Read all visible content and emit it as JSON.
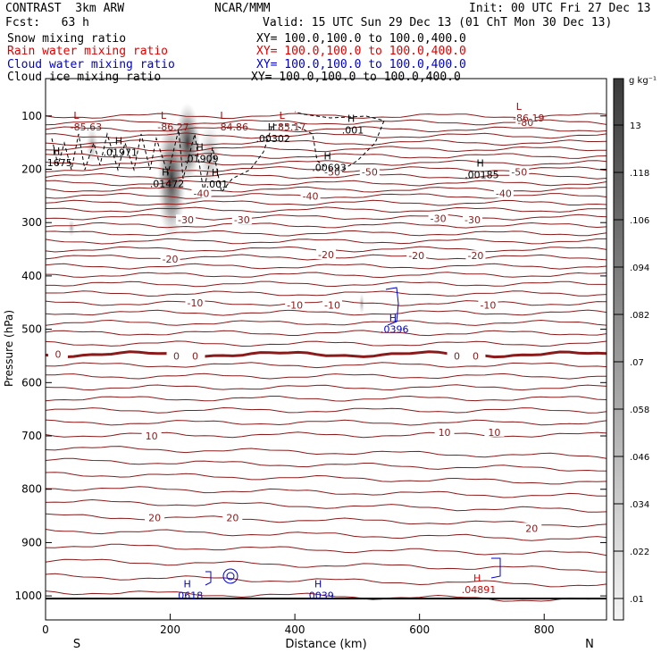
{
  "header": {
    "model": "CONTRAST  3km ARW",
    "org": "NCAR/MMM",
    "init": "Init: 00 UTC Fri 27 Dec 13",
    "fcst": "Fcst:   63 h",
    "valid": "Valid: 15 UTC Sun 29 Dec 13 (01 ChT Mon 30 Dec 13)",
    "fields": [
      {
        "name": "Snow mixing ratio",
        "xy": "XY= 100.0,100.0 to 100.0,400.0",
        "color": "#000000"
      },
      {
        "name": "Rain water mixing ratio",
        "xy": "XY= 100.0,100.0 to 100.0,400.0",
        "color": "#e00000"
      },
      {
        "name": "Cloud water mixing ratio",
        "xy": "XY= 100.0,100.0 to 100.0,400.0",
        "color": "#0000d0"
      },
      {
        "name": "Cloud ice mixing ratio",
        "xy": "XY= 100.0,100.0 to 100.0,400.0",
        "color": "#000000"
      }
    ]
  },
  "colorbar": {
    "unit": "g kg⁻¹",
    "ticks": [
      "13",
      ".118",
      ".106",
      ".094",
      ".082",
      ".07",
      ".058",
      ".046",
      ".034",
      ".022",
      ".01"
    ]
  },
  "chart_data": {
    "type": "cross-section",
    "xlabel": "Distance (km)",
    "ylabel": "Pressure (hPa)",
    "x_ticks": [
      0,
      200,
      400,
      600,
      800
    ],
    "xlim": [
      0,
      900
    ],
    "y_ticks": [
      100,
      200,
      300,
      400,
      500,
      600,
      700,
      800,
      900,
      1000
    ],
    "ylim": [
      30,
      1045
    ],
    "end_labels": {
      "left": "S",
      "right": "N"
    },
    "temperature_contours": [
      {
        "label": "-80",
        "x": 770,
        "p": 112
      },
      {
        "label": "-50",
        "x": 520,
        "p": 205
      },
      {
        "label": "-50",
        "x": 760,
        "p": 205
      },
      {
        "label": "-50",
        "x": 460,
        "p": 205
      },
      {
        "label": "-40",
        "x": 250,
        "p": 245
      },
      {
        "label": "-40",
        "x": 425,
        "p": 250
      },
      {
        "label": "-40",
        "x": 735,
        "p": 245
      },
      {
        "label": "-30",
        "x": 225,
        "p": 295
      },
      {
        "label": "-30",
        "x": 315,
        "p": 295
      },
      {
        "label": "-30",
        "x": 630,
        "p": 292
      },
      {
        "label": "-30",
        "x": 685,
        "p": 295
      },
      {
        "label": "-20",
        "x": 200,
        "p": 368
      },
      {
        "label": "-20",
        "x": 450,
        "p": 360
      },
      {
        "label": "-20",
        "x": 595,
        "p": 362
      },
      {
        "label": "-20",
        "x": 690,
        "p": 362
      },
      {
        "label": "-10",
        "x": 240,
        "p": 450
      },
      {
        "label": "-10",
        "x": 400,
        "p": 455
      },
      {
        "label": "-10",
        "x": 460,
        "p": 455
      },
      {
        "label": "-10",
        "x": 710,
        "p": 455
      },
      {
        "label": "0",
        "x": 20,
        "p": 547
      },
      {
        "label": "0",
        "x": 210,
        "p": 550
      },
      {
        "label": "0",
        "x": 240,
        "p": 550
      },
      {
        "label": "0",
        "x": 660,
        "p": 550
      },
      {
        "label": "0",
        "x": 690,
        "p": 550
      },
      {
        "label": "10",
        "x": 170,
        "p": 700
      },
      {
        "label": "10",
        "x": 640,
        "p": 693
      },
      {
        "label": "10",
        "x": 720,
        "p": 693
      },
      {
        "label": "20",
        "x": 175,
        "p": 853
      },
      {
        "label": "20",
        "x": 300,
        "p": 853
      },
      {
        "label": "20",
        "x": 780,
        "p": 873
      }
    ],
    "minima": [
      {
        "label": "-85.63",
        "x": 65,
        "p": 110
      },
      {
        "label": "-86.27",
        "x": 205,
        "p": 110
      },
      {
        "label": "-84.86",
        "x": 300,
        "p": 110
      },
      {
        "label": "85.17",
        "x": 395,
        "p": 110
      },
      {
        "label": "-86.19",
        "x": 775,
        "p": 94
      }
    ],
    "maxima": [
      {
        "label": ".1675",
        "x": 20,
        "p": 177
      },
      {
        "label": ".01971",
        "x": 120,
        "p": 158
      },
      {
        "label": ".01909",
        "x": 250,
        "p": 170
      },
      {
        "label": ".00302",
        "x": 365,
        "p": 132
      },
      {
        "label": ".001",
        "x": 493,
        "p": 116
      },
      {
        "label": ".00693",
        "x": 455,
        "p": 187
      },
      {
        "label": ".00185",
        "x": 700,
        "p": 200
      },
      {
        "label": ".01472",
        "x": 195,
        "p": 217
      },
      {
        "label": ".001",
        "x": 275,
        "p": 218
      },
      {
        "label": ".0396",
        "x": 560,
        "p": 490
      },
      {
        "label": ".0618",
        "x": 230,
        "p": 989
      },
      {
        "label": ".0039",
        "x": 440,
        "p": 989
      },
      {
        "label": ".04891",
        "x": 695,
        "p": 978
      }
    ],
    "ground_pressure": 1005
  }
}
